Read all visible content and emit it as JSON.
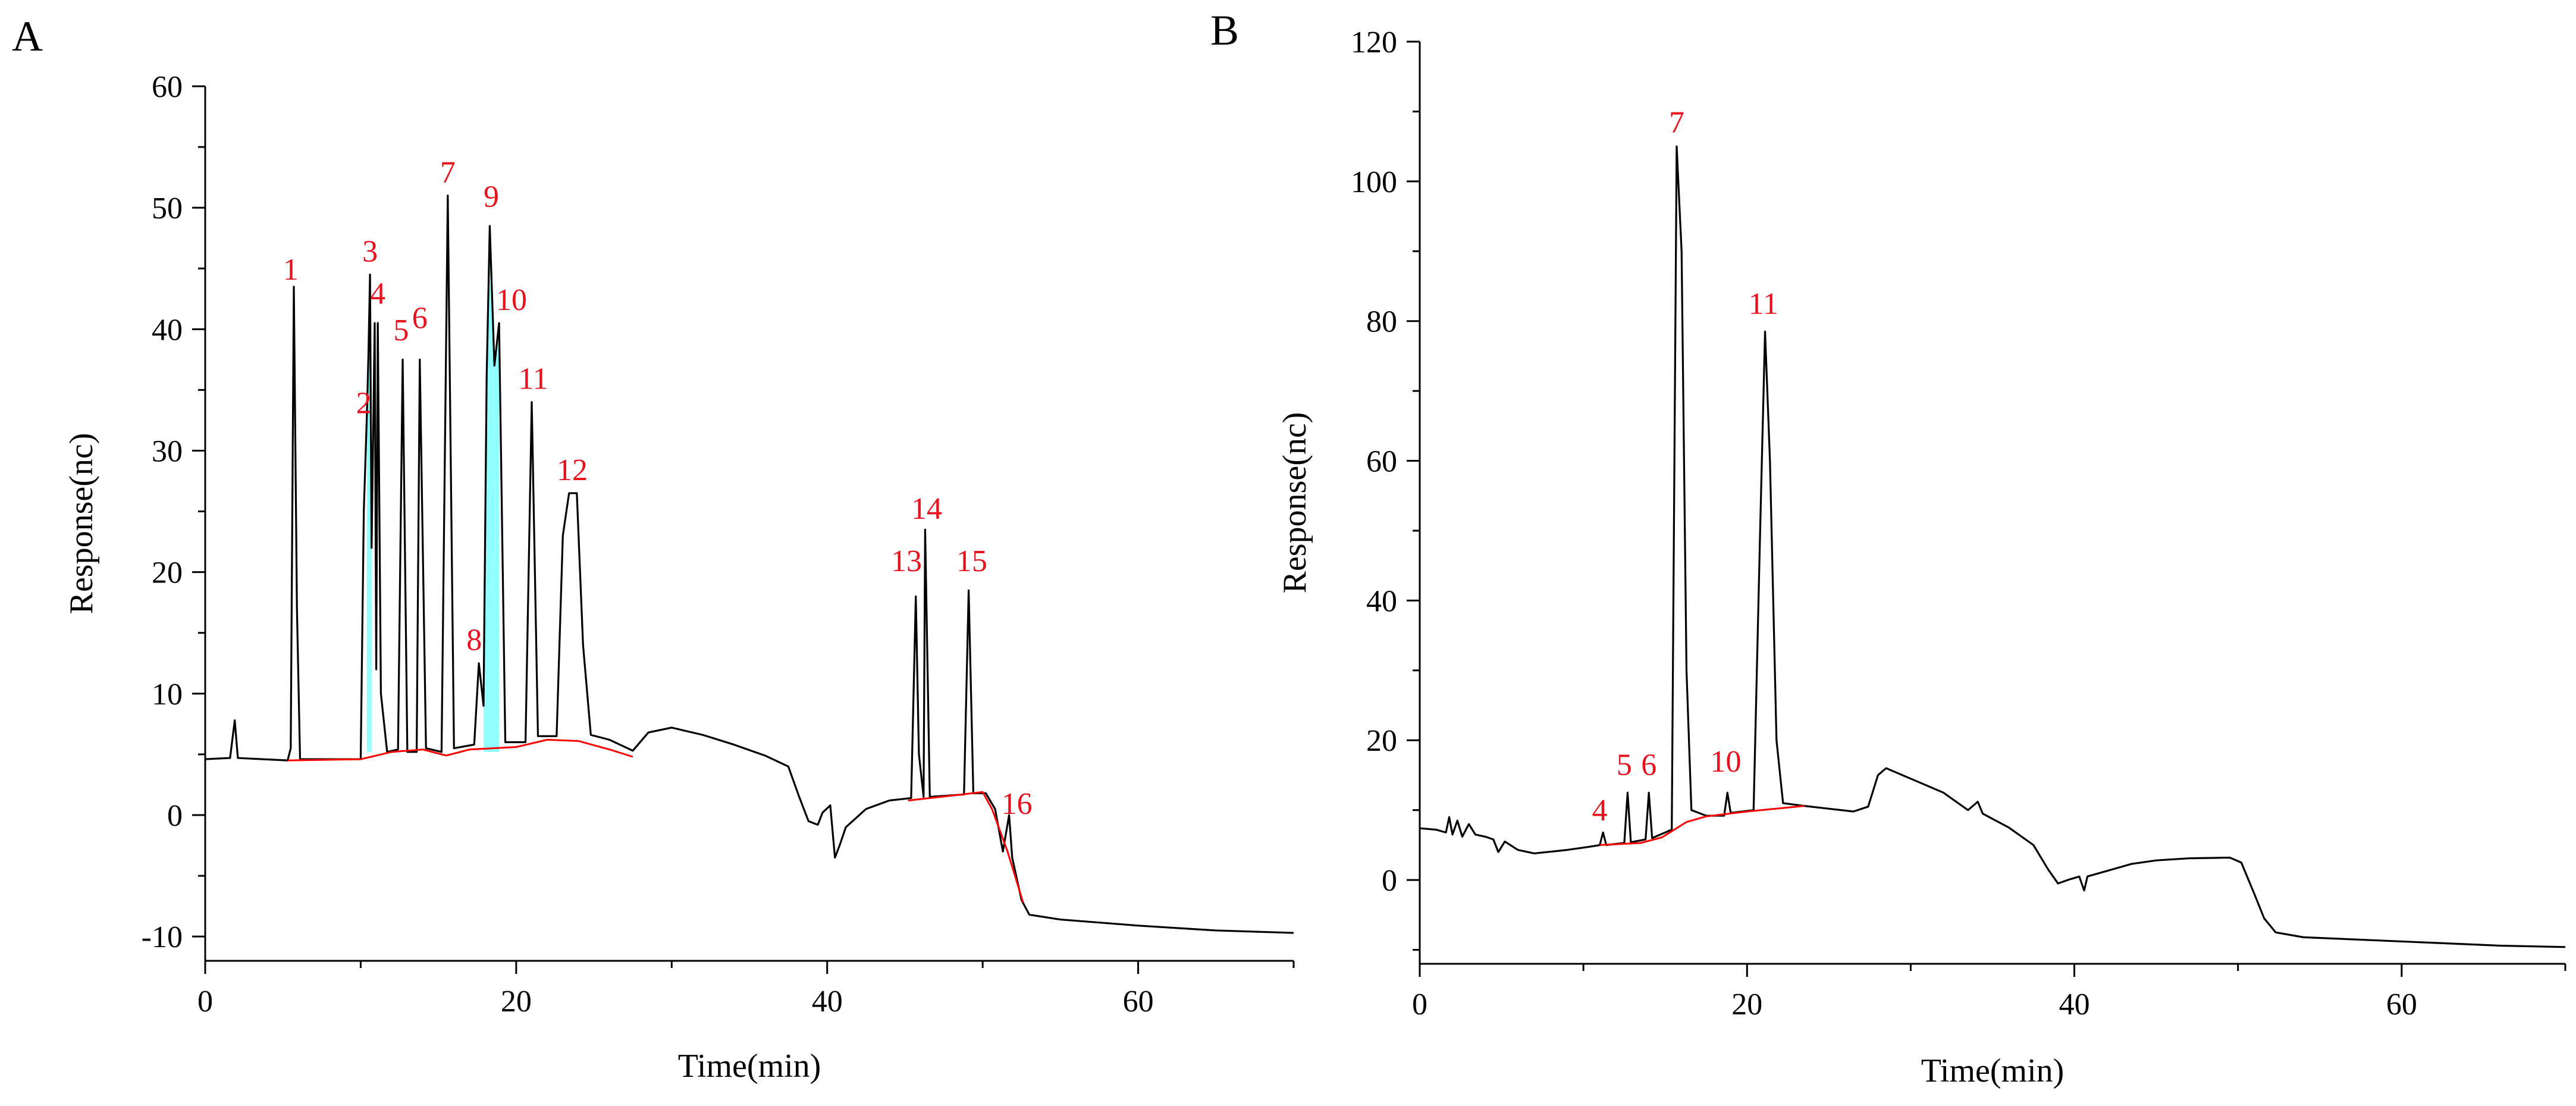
{
  "chart_data": [
    {
      "panel_label": "A",
      "type": "line",
      "xlabel": "Time(min)",
      "ylabel": "Response(nc)",
      "xlim": [
        0,
        70
      ],
      "ylim": [
        -12,
        60
      ],
      "xticks": [
        0,
        20,
        40,
        60
      ],
      "yticks": [
        -10,
        0,
        10,
        20,
        30,
        40,
        50,
        60
      ],
      "line_color": "#000000",
      "baseline_color": "#ff0000",
      "fill_color": "#7fffff",
      "label_color": "#e8101a",
      "trace": [
        [
          0,
          4.6
        ],
        [
          1.6,
          4.7
        ],
        [
          1.9,
          7.8
        ],
        [
          2.1,
          4.7
        ],
        [
          5.3,
          4.5
        ],
        [
          5.5,
          5.5
        ],
        [
          5.7,
          43.5
        ],
        [
          5.9,
          17
        ],
        [
          6.1,
          4.6
        ],
        [
          10,
          4.6
        ],
        [
          10.2,
          25
        ],
        [
          10.4,
          33
        ],
        [
          10.5,
          38
        ],
        [
          10.6,
          44.5
        ],
        [
          10.7,
          22
        ],
        [
          10.9,
          40.5
        ],
        [
          11,
          12
        ],
        [
          11.1,
          40.5
        ],
        [
          11.3,
          10
        ],
        [
          11.7,
          5.2
        ],
        [
          12.4,
          5.4
        ],
        [
          12.7,
          37.5
        ],
        [
          13,
          5.2
        ],
        [
          13.6,
          5.2
        ],
        [
          13.8,
          37.5
        ],
        [
          14.2,
          5.5
        ],
        [
          15.2,
          5.2
        ],
        [
          15.6,
          51
        ],
        [
          16,
          5.5
        ],
        [
          17.3,
          5.8
        ],
        [
          17.6,
          12.5
        ],
        [
          17.9,
          9
        ],
        [
          18.1,
          36
        ],
        [
          18.3,
          48.5
        ],
        [
          18.6,
          37
        ],
        [
          18.9,
          40.5
        ],
        [
          19.3,
          6
        ],
        [
          20.6,
          6
        ],
        [
          21,
          34
        ],
        [
          21.4,
          6.5
        ],
        [
          22.6,
          6.5
        ],
        [
          23,
          23
        ],
        [
          23.4,
          26.5
        ],
        [
          23.9,
          26.5
        ],
        [
          24.3,
          14
        ],
        [
          24.8,
          6.6
        ],
        [
          26,
          6.2
        ],
        [
          27.5,
          5.3
        ],
        [
          28.5,
          6.8
        ],
        [
          30,
          7.2
        ],
        [
          32,
          6.6
        ],
        [
          34,
          5.8
        ],
        [
          36,
          4.9
        ],
        [
          37.5,
          4
        ],
        [
          38.2,
          1.5
        ],
        [
          38.8,
          -0.5
        ],
        [
          39.4,
          -0.8
        ],
        [
          39.7,
          0.2
        ],
        [
          40.2,
          0.8
        ],
        [
          40.5,
          -3.5
        ],
        [
          40.8,
          -2.5
        ],
        [
          41.2,
          -1
        ],
        [
          42.5,
          0.5
        ],
        [
          44,
          1.2
        ],
        [
          45.4,
          1.4
        ],
        [
          45.7,
          18
        ],
        [
          45.9,
          5
        ],
        [
          46.2,
          1.5
        ],
        [
          46.3,
          23.5
        ],
        [
          46.6,
          1.5
        ],
        [
          48.8,
          1.7
        ],
        [
          49.1,
          18.5
        ],
        [
          49.4,
          1.8
        ],
        [
          50.2,
          1.8
        ],
        [
          50.8,
          0.5
        ],
        [
          51.3,
          -3
        ],
        [
          51.7,
          0
        ],
        [
          51.9,
          -3.5
        ],
        [
          52.5,
          -7
        ],
        [
          53,
          -8.2
        ],
        [
          55,
          -8.6
        ],
        [
          60,
          -9.1
        ],
        [
          65,
          -9.5
        ],
        [
          70,
          -9.7
        ]
      ],
      "baseline": [
        [
          5.3,
          4.5
        ],
        [
          10,
          4.6
        ],
        [
          12,
          5.2
        ],
        [
          14,
          5.4
        ],
        [
          15.5,
          4.9
        ],
        [
          17,
          5.4
        ],
        [
          20,
          5.6
        ],
        [
          22,
          6.2
        ],
        [
          24,
          6.1
        ],
        [
          26,
          5.4
        ],
        [
          27.5,
          4.8
        ]
      ],
      "baseline2": [
        [
          45.2,
          1.2
        ],
        [
          48,
          1.6
        ],
        [
          50,
          1.9
        ],
        [
          50.6,
          0.5
        ],
        [
          51.6,
          -3
        ],
        [
          52.6,
          -7.2
        ]
      ],
      "filled_peaks": [
        [
          10.3,
          10.8
        ],
        [
          17.9,
          18.9
        ]
      ],
      "peak_labels": [
        {
          "text": "1",
          "x": 5.5,
          "y": 43.5
        },
        {
          "text": "2",
          "x": 10.2,
          "y": 32.5
        },
        {
          "text": "3",
          "x": 10.6,
          "y": 45.0
        },
        {
          "text": "4",
          "x": 11.1,
          "y": 41.5
        },
        {
          "text": "5",
          "x": 12.6,
          "y": 38.5
        },
        {
          "text": "6",
          "x": 13.8,
          "y": 39.5
        },
        {
          "text": "7",
          "x": 15.6,
          "y": 51.5
        },
        {
          "text": "8",
          "x": 17.3,
          "y": 13.0
        },
        {
          "text": "9",
          "x": 18.4,
          "y": 49.5
        },
        {
          "text": "10",
          "x": 19.7,
          "y": 41.0
        },
        {
          "text": "11",
          "x": 21.1,
          "y": 34.5
        },
        {
          "text": "12",
          "x": 23.6,
          "y": 27.0
        },
        {
          "text": "13",
          "x": 45.1,
          "y": 19.5
        },
        {
          "text": "14",
          "x": 46.4,
          "y": 23.8
        },
        {
          "text": "15",
          "x": 49.3,
          "y": 19.5
        },
        {
          "text": "16",
          "x": 52.2,
          "y": -0.5
        }
      ]
    },
    {
      "panel_label": "B",
      "type": "line",
      "xlabel": "Time(min)",
      "ylabel": "Response(nc)",
      "xlim": [
        0,
        70
      ],
      "ylim": [
        -12,
        120
      ],
      "xticks": [
        0,
        20,
        40,
        60
      ],
      "yticks": [
        0,
        20,
        40,
        60,
        80,
        100,
        120
      ],
      "line_color": "#000000",
      "baseline_color": "#ff0000",
      "label_color": "#e8101a",
      "trace": [
        [
          0,
          7.4
        ],
        [
          1,
          7.2
        ],
        [
          1.6,
          6.8
        ],
        [
          1.8,
          9
        ],
        [
          2,
          6.5
        ],
        [
          2.3,
          8.5
        ],
        [
          2.6,
          6.2
        ],
        [
          3,
          8
        ],
        [
          3.4,
          6.5
        ],
        [
          4,
          6.2
        ],
        [
          4.5,
          5.8
        ],
        [
          4.8,
          4
        ],
        [
          5.2,
          5.5
        ],
        [
          6,
          4.3
        ],
        [
          7,
          3.8
        ],
        [
          9,
          4.3
        ],
        [
          10.5,
          4.8
        ],
        [
          11,
          5
        ],
        [
          11.2,
          6.8
        ],
        [
          11.4,
          5
        ],
        [
          12.5,
          5.3
        ],
        [
          12.7,
          12.5
        ],
        [
          12.9,
          5.4
        ],
        [
          13.8,
          5.8
        ],
        [
          14,
          12.5
        ],
        [
          14.2,
          6
        ],
        [
          15,
          6.8
        ],
        [
          15.4,
          7.2
        ],
        [
          15.7,
          105
        ],
        [
          16,
          90
        ],
        [
          16.3,
          30
        ],
        [
          16.6,
          10
        ],
        [
          17.5,
          9.2
        ],
        [
          18.6,
          9.2
        ],
        [
          18.8,
          12.5
        ],
        [
          19,
          9.6
        ],
        [
          20.4,
          10
        ],
        [
          20.8,
          50
        ],
        [
          21.1,
          78.5
        ],
        [
          21.4,
          60
        ],
        [
          21.8,
          20
        ],
        [
          22.2,
          11
        ],
        [
          23.5,
          10.6
        ],
        [
          25,
          10.2
        ],
        [
          26.5,
          9.8
        ],
        [
          27.4,
          10.5
        ],
        [
          28,
          15
        ],
        [
          28.5,
          16
        ],
        [
          30,
          14.5
        ],
        [
          32,
          12.5
        ],
        [
          33.5,
          10
        ],
        [
          34.1,
          11.2
        ],
        [
          34.4,
          9.5
        ],
        [
          36,
          7.5
        ],
        [
          37.5,
          5
        ],
        [
          38.4,
          1.5
        ],
        [
          39,
          -0.5
        ],
        [
          39.6,
          0
        ],
        [
          40.3,
          0.5
        ],
        [
          40.6,
          -1.5
        ],
        [
          40.8,
          0.5
        ],
        [
          42,
          1.3
        ],
        [
          43.5,
          2.3
        ],
        [
          45,
          2.8
        ],
        [
          47,
          3.1
        ],
        [
          49.5,
          3.2
        ],
        [
          50.2,
          2.5
        ],
        [
          51,
          -2
        ],
        [
          51.6,
          -5.5
        ],
        [
          52.3,
          -7.5
        ],
        [
          54,
          -8.2
        ],
        [
          58,
          -8.6
        ],
        [
          62,
          -9
        ],
        [
          66,
          -9.4
        ],
        [
          70,
          -9.6
        ]
      ],
      "baseline": [
        [
          11,
          5
        ],
        [
          13.5,
          5.3
        ],
        [
          14.8,
          6.1
        ],
        [
          16.3,
          8.3
        ],
        [
          17.5,
          9.1
        ],
        [
          20,
          9.8
        ],
        [
          23.5,
          10.6
        ]
      ],
      "peak_labels": [
        {
          "text": "4",
          "x": 11.0,
          "y": 7.5
        },
        {
          "text": "5",
          "x": 12.5,
          "y": 14.0
        },
        {
          "text": "6",
          "x": 14.0,
          "y": 14.0
        },
        {
          "text": "7",
          "x": 15.7,
          "y": 106.0
        },
        {
          "text": "10",
          "x": 18.7,
          "y": 14.5
        },
        {
          "text": "11",
          "x": 21.0,
          "y": 80.0
        }
      ]
    }
  ]
}
